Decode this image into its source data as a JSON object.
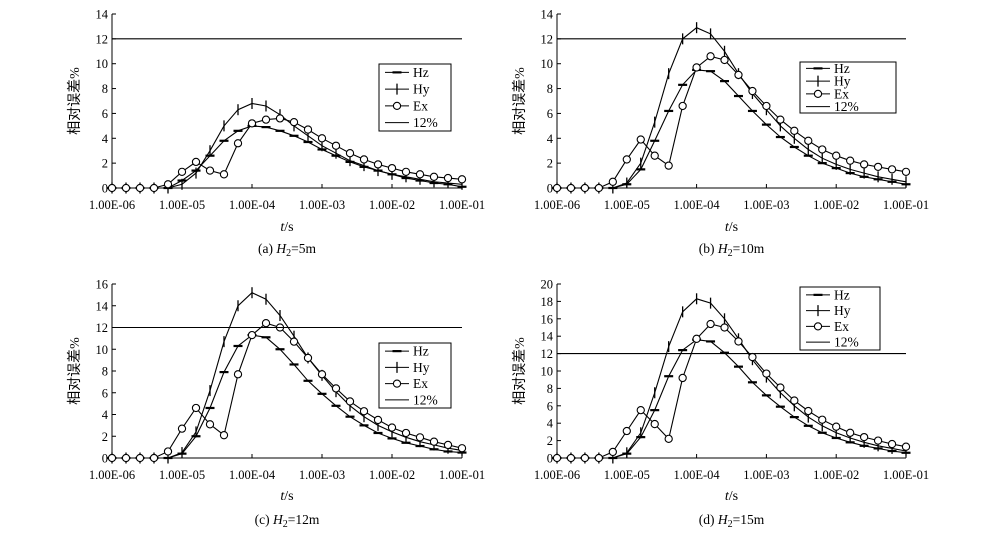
{
  "chart_data": [
    {
      "type": "line",
      "caption_prefix": "(a) ",
      "caption_var": "H",
      "caption_sub": "2",
      "caption_suffix": "=5m",
      "xlabel_var": "t",
      "xlabel_unit": "/s",
      "ylabel": "相对误差%",
      "xscale": "log",
      "x_ticks": [
        "1.00E-06",
        "1.00E-05",
        "1.00E-04",
        "1.00E-03",
        "1.00E-02",
        "1.00E-01"
      ],
      "ylim": [
        0,
        14
      ],
      "y_ticks": [
        0,
        2,
        4,
        6,
        8,
        10,
        12,
        14
      ],
      "legend_position": "right",
      "legend": [
        "Hz",
        "Hy",
        "Ex",
        "12%"
      ],
      "x": [
        -6.0,
        -5.8,
        -5.6,
        -5.4,
        -5.2,
        -5.0,
        -4.8,
        -4.6,
        -4.4,
        -4.2,
        -4.0,
        -3.8,
        -3.6,
        -3.4,
        -3.2,
        -3.0,
        -2.8,
        -2.6,
        -2.4,
        -2.2,
        -2.0,
        -1.8,
        -1.6,
        -1.4,
        -1.2,
        -1.0
      ],
      "series": [
        {
          "name": "Hz",
          "marker": "dash",
          "values": [
            0,
            0,
            0,
            0,
            0,
            0.6,
            1.4,
            2.6,
            3.8,
            4.6,
            5.0,
            4.9,
            4.6,
            4.2,
            3.7,
            3.1,
            2.6,
            2.1,
            1.7,
            1.4,
            1.1,
            0.8,
            0.6,
            0.4,
            0.3,
            0.1
          ]
        },
        {
          "name": "Hy",
          "marker": "plus",
          "values": [
            0,
            0,
            0,
            0,
            0,
            0.3,
            1.2,
            3.0,
            5.0,
            6.3,
            6.8,
            6.6,
            5.9,
            5.0,
            4.2,
            3.4,
            2.8,
            2.2,
            1.8,
            1.4,
            1.1,
            0.9,
            0.7,
            0.5,
            0.4,
            0.3
          ]
        },
        {
          "name": "Ex",
          "marker": "circle",
          "values": [
            0,
            0,
            0,
            0,
            0.3,
            1.3,
            2.1,
            1.4,
            1.1,
            3.6,
            5.2,
            5.5,
            5.6,
            5.3,
            4.7,
            4.0,
            3.4,
            2.8,
            2.3,
            1.9,
            1.6,
            1.3,
            1.1,
            0.9,
            0.8,
            0.7
          ]
        },
        {
          "name": "12%",
          "marker": "none",
          "constant": 12
        }
      ]
    },
    {
      "type": "line",
      "caption_prefix": "(b) ",
      "caption_var": "H",
      "caption_sub": "2",
      "caption_suffix": "=10m",
      "xlabel_var": "t",
      "xlabel_unit": "/s",
      "ylabel": "相对误差%",
      "xscale": "log",
      "x_ticks": [
        "1.00E-06",
        "1.00E-05",
        "1.00E-04",
        "1.00E-03",
        "1.00E-02",
        "1.00E-01"
      ],
      "ylim": [
        0,
        14
      ],
      "y_ticks": [
        0,
        2,
        4,
        6,
        8,
        10,
        12,
        14
      ],
      "legend_position": "right",
      "legend": [
        "Hz",
        "Hy",
        "Ex",
        "12%"
      ],
      "x": [
        -6.0,
        -5.8,
        -5.6,
        -5.4,
        -5.2,
        -5.0,
        -4.8,
        -4.6,
        -4.4,
        -4.2,
        -4.0,
        -3.8,
        -3.6,
        -3.4,
        -3.2,
        -3.0,
        -2.8,
        -2.6,
        -2.4,
        -2.2,
        -2.0,
        -1.8,
        -1.6,
        -1.4,
        -1.2,
        -1.0
      ],
      "series": [
        {
          "name": "Hz",
          "marker": "dash",
          "values": [
            0,
            0,
            0,
            0,
            0,
            0.3,
            1.5,
            3.8,
            6.2,
            8.3,
            9.5,
            9.4,
            8.6,
            7.4,
            6.2,
            5.1,
            4.1,
            3.3,
            2.6,
            2.0,
            1.6,
            1.2,
            0.9,
            0.7,
            0.5,
            0.3
          ]
        },
        {
          "name": "Hy",
          "marker": "plus",
          "values": [
            0,
            0,
            0,
            0,
            0,
            0.4,
            2.0,
            5.3,
            9.2,
            12.0,
            12.9,
            12.4,
            11.0,
            9.2,
            7.6,
            6.3,
            5.0,
            4.0,
            3.1,
            2.4,
            1.9,
            1.5,
            1.2,
            0.9,
            0.7,
            0.5
          ]
        },
        {
          "name": "Ex",
          "marker": "circle",
          "values": [
            0,
            0,
            0,
            0,
            0.5,
            2.3,
            3.9,
            2.6,
            1.8,
            6.6,
            9.7,
            10.6,
            10.3,
            9.1,
            7.8,
            6.6,
            5.5,
            4.6,
            3.8,
            3.1,
            2.6,
            2.2,
            1.9,
            1.7,
            1.5,
            1.3
          ]
        },
        {
          "name": "12%",
          "marker": "none",
          "constant": 12
        }
      ]
    },
    {
      "type": "line",
      "caption_prefix": "(c) ",
      "caption_var": "H",
      "caption_sub": "2",
      "caption_suffix": "=12m",
      "xlabel_var": "t",
      "xlabel_unit": "/s",
      "ylabel": "相对误差%",
      "xscale": "log",
      "x_ticks": [
        "1.00E-06",
        "1.00E-05",
        "1.00E-04",
        "1.00E-03",
        "1.00E-02",
        "1.00E-01"
      ],
      "ylim": [
        0,
        16
      ],
      "y_ticks": [
        0,
        2,
        4,
        6,
        8,
        10,
        12,
        14,
        16
      ],
      "legend_position": "right",
      "legend": [
        "Hz",
        "Hy",
        "Ex",
        "12%"
      ],
      "x": [
        -6.0,
        -5.8,
        -5.6,
        -5.4,
        -5.2,
        -5.0,
        -4.8,
        -4.6,
        -4.4,
        -4.2,
        -4.0,
        -3.8,
        -3.6,
        -3.4,
        -3.2,
        -3.0,
        -2.8,
        -2.6,
        -2.4,
        -2.2,
        -2.0,
        -1.8,
        -1.6,
        -1.4,
        -1.2,
        -1.0
      ],
      "series": [
        {
          "name": "Hz",
          "marker": "dash",
          "values": [
            0,
            0,
            0,
            0,
            0,
            0.4,
            2.0,
            4.6,
            7.9,
            10.3,
            11.3,
            11.1,
            10.0,
            8.6,
            7.1,
            5.9,
            4.8,
            3.8,
            3.0,
            2.3,
            1.8,
            1.4,
            1.1,
            0.8,
            0.6,
            0.5
          ]
        },
        {
          "name": "Hy",
          "marker": "plus",
          "values": [
            0,
            0,
            0,
            0,
            0,
            0.5,
            2.4,
            6.2,
            10.7,
            14.0,
            15.2,
            14.6,
            13.1,
            11.2,
            9.2,
            7.6,
            6.1,
            4.8,
            3.8,
            3.0,
            2.4,
            1.9,
            1.5,
            1.2,
            0.9,
            0.7
          ]
        },
        {
          "name": "Ex",
          "marker": "circle",
          "values": [
            0,
            0,
            0,
            0,
            0.6,
            2.7,
            4.6,
            3.1,
            2.1,
            7.7,
            11.3,
            12.4,
            12.0,
            10.7,
            9.2,
            7.7,
            6.4,
            5.2,
            4.3,
            3.5,
            2.8,
            2.3,
            1.9,
            1.5,
            1.2,
            0.9
          ]
        },
        {
          "name": "12%",
          "marker": "none",
          "constant": 12
        }
      ]
    },
    {
      "type": "line",
      "caption_prefix": "(d) ",
      "caption_var": "H",
      "caption_sub": "2",
      "caption_suffix": "=15m",
      "xlabel_var": "t",
      "xlabel_unit": "/s",
      "ylabel": "相对误差%",
      "xscale": "log",
      "x_ticks": [
        "1.00E-06",
        "1.00E-05",
        "1.00E-04",
        "1.00E-03",
        "1.00E-02",
        "1.00E-01"
      ],
      "ylim": [
        0,
        20
      ],
      "y_ticks": [
        0,
        2,
        4,
        6,
        8,
        10,
        12,
        14,
        16,
        18,
        20
      ],
      "legend_position": "top-right",
      "legend": [
        "Hz",
        "Hy",
        "Ex",
        "12%"
      ],
      "x": [
        -6.0,
        -5.8,
        -5.6,
        -5.4,
        -5.2,
        -5.0,
        -4.8,
        -4.6,
        -4.4,
        -4.2,
        -4.0,
        -3.8,
        -3.6,
        -3.4,
        -3.2,
        -3.0,
        -2.8,
        -2.6,
        -2.4,
        -2.2,
        -2.0,
        -1.8,
        -1.6,
        -1.4,
        -1.2,
        -1.0
      ],
      "series": [
        {
          "name": "Hz",
          "marker": "dash",
          "values": [
            0,
            0,
            0,
            0,
            0,
            0.5,
            2.4,
            5.5,
            9.4,
            12.4,
            13.6,
            13.4,
            12.1,
            10.5,
            8.7,
            7.2,
            5.9,
            4.7,
            3.7,
            2.9,
            2.3,
            1.8,
            1.4,
            1.1,
            0.8,
            0.6
          ]
        },
        {
          "name": "Hy",
          "marker": "plus",
          "values": [
            0,
            0,
            0,
            0,
            0,
            0.6,
            2.9,
            7.5,
            12.8,
            16.8,
            18.3,
            17.8,
            16.0,
            13.7,
            11.3,
            9.3,
            7.5,
            6.0,
            4.7,
            3.7,
            2.9,
            2.3,
            1.8,
            1.4,
            1.1,
            0.8
          ]
        },
        {
          "name": "Ex",
          "marker": "circle",
          "values": [
            0,
            0,
            0,
            0,
            0.7,
            3.1,
            5.5,
            3.9,
            2.2,
            9.2,
            13.7,
            15.4,
            15.0,
            13.4,
            11.6,
            9.7,
            8.1,
            6.6,
            5.4,
            4.4,
            3.6,
            2.9,
            2.4,
            2.0,
            1.6,
            1.3
          ]
        },
        {
          "name": "12%",
          "marker": "none",
          "constant": 12
        }
      ]
    }
  ]
}
